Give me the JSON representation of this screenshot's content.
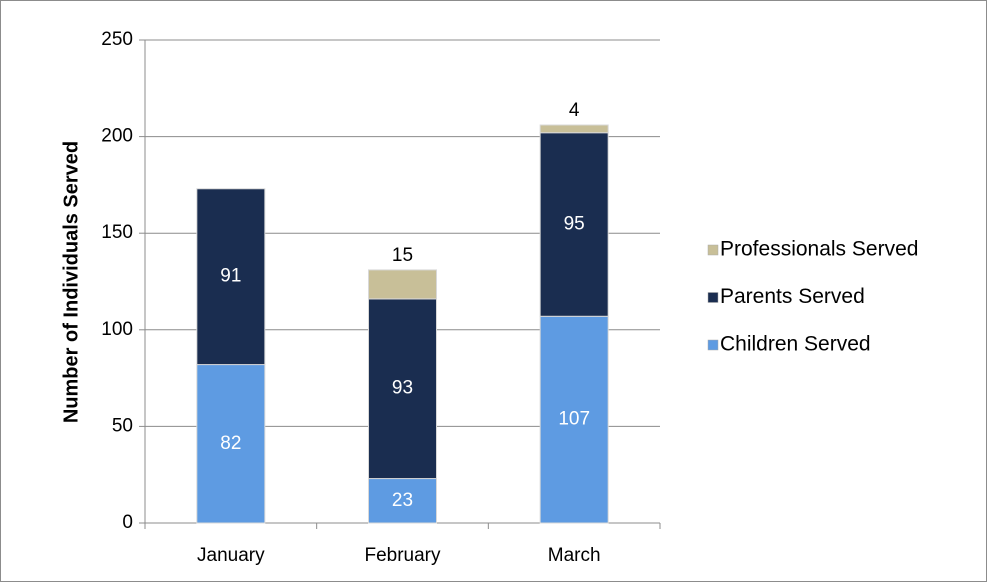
{
  "chart_data": {
    "type": "stacked_bar",
    "y_axis_label": "Number of Individuals Served",
    "categories": [
      "January",
      "February",
      "March"
    ],
    "series": [
      {
        "name": "Children Served",
        "color": "#5e9be2",
        "values": [
          82,
          23,
          107
        ]
      },
      {
        "name": "Parents Served",
        "color": "#1a2d50",
        "values": [
          91,
          93,
          95
        ]
      },
      {
        "name": "Professionals Served",
        "color": "#c8bf98",
        "values": [
          null,
          15,
          4
        ]
      }
    ],
    "ylim": [
      0,
      250
    ],
    "yticks": [
      0,
      50,
      100,
      150,
      200,
      250
    ],
    "grid": true,
    "legend": "right"
  }
}
